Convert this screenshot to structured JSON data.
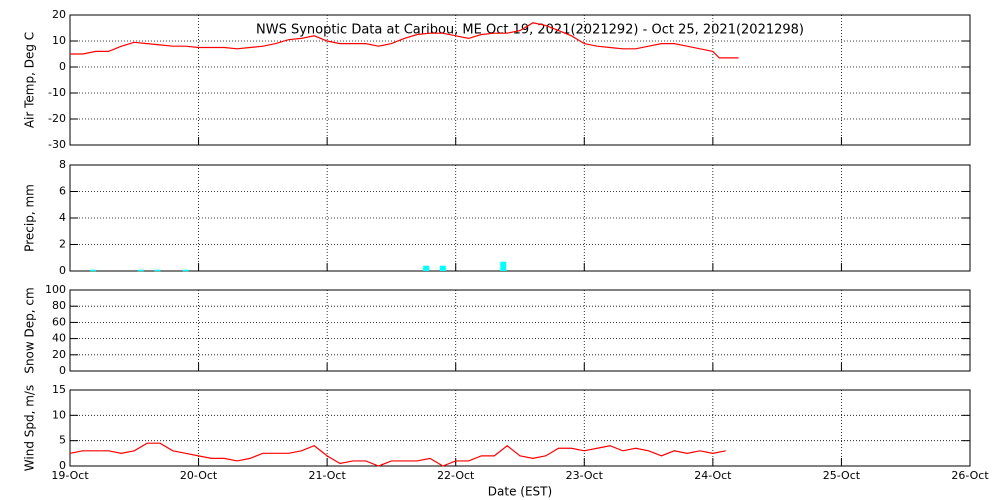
{
  "x_axis": {
    "label": "Date (EST)",
    "xlim": [
      0,
      7
    ],
    "xticks": [
      {
        "value": 0,
        "label": "19-Oct"
      },
      {
        "value": 1,
        "label": "20-Oct"
      },
      {
        "value": 2,
        "label": "21-Oct"
      },
      {
        "value": 3,
        "label": "22-Oct"
      },
      {
        "value": 4,
        "label": "23-Oct"
      },
      {
        "value": 5,
        "label": "24-Oct"
      },
      {
        "value": 6,
        "label": "25-Oct"
      },
      {
        "value": 7,
        "label": "26-Oct"
      }
    ]
  },
  "chart_data": [
    {
      "type": "line",
      "title": "NWS Synoptic Data at Caribou, ME   Oct 19, 2021(2021292) - Oct 25, 2021(2021298)",
      "ylabel": "Air Temp, Deg C",
      "ylim": [
        -30,
        20
      ],
      "yticks": [
        -30,
        -20,
        -10,
        0,
        10,
        20
      ],
      "grid": true,
      "series": [
        {
          "color": "#ff0000",
          "x": [
            0,
            0.1,
            0.2,
            0.3,
            0.4,
            0.5,
            0.6,
            0.7,
            0.8,
            0.9,
            1,
            1.1,
            1.2,
            1.3,
            1.4,
            1.5,
            1.6,
            1.7,
            1.8,
            1.9,
            2,
            2.1,
            2.2,
            2.3,
            2.4,
            2.5,
            2.6,
            2.7,
            2.8,
            2.9,
            3,
            3.1,
            3.2,
            3.3,
            3.4,
            3.5,
            3.6,
            3.7,
            3.8,
            3.9,
            4,
            4.1,
            4.2,
            4.3,
            4.4,
            4.5,
            4.6,
            4.7,
            4.8,
            4.9,
            5,
            5.05,
            5.2
          ],
          "values": [
            5,
            5,
            6,
            6,
            8,
            9.5,
            9,
            8.5,
            8,
            8,
            7.5,
            7.5,
            7.5,
            7,
            7.5,
            8,
            9,
            10.5,
            11,
            12,
            10,
            9,
            9,
            9,
            8,
            9,
            11,
            12.5,
            13,
            13,
            12,
            11,
            12.5,
            13,
            13,
            14,
            17,
            16,
            14,
            12,
            9,
            8,
            7.5,
            7,
            7,
            8,
            9,
            9,
            8,
            7,
            6,
            3.5,
            3.5
          ]
        }
      ]
    },
    {
      "type": "bar",
      "ylabel": "Precip, mm",
      "ylim": [
        0,
        8
      ],
      "yticks": [
        0,
        2,
        4,
        6,
        8
      ],
      "grid": true,
      "series": [
        {
          "color": "#00ffff",
          "x": [
            0.18,
            0.55,
            0.68,
            0.9,
            2.77,
            2.9,
            3.37
          ],
          "values": [
            0.1,
            0.1,
            0.1,
            0.1,
            0.4,
            0.4,
            0.7
          ]
        }
      ]
    },
    {
      "type": "line",
      "ylabel": "Snow Dep, cm",
      "ylim": [
        0,
        100
      ],
      "yticks": [
        0,
        20,
        40,
        60,
        80,
        100
      ],
      "grid": true
    },
    {
      "type": "line",
      "ylabel": "Wind Spd, m/s",
      "ylim": [
        0,
        15
      ],
      "yticks": [
        0,
        5,
        10,
        15
      ],
      "grid": true,
      "series": [
        {
          "color": "#ff0000",
          "x": [
            0,
            0.1,
            0.2,
            0.3,
            0.4,
            0.5,
            0.6,
            0.7,
            0.8,
            0.9,
            1,
            1.1,
            1.2,
            1.3,
            1.4,
            1.5,
            1.6,
            1.7,
            1.8,
            1.9,
            2,
            2.1,
            2.2,
            2.3,
            2.4,
            2.5,
            2.6,
            2.7,
            2.8,
            2.9,
            3,
            3.1,
            3.2,
            3.3,
            3.4,
            3.5,
            3.6,
            3.7,
            3.8,
            3.9,
            4,
            4.1,
            4.2,
            4.3,
            4.4,
            4.5,
            4.6,
            4.7,
            4.8,
            4.9,
            5,
            5.1
          ],
          "values": [
            2.5,
            3,
            3,
            3,
            2.5,
            3,
            4.5,
            4.5,
            3,
            2.5,
            2,
            1.5,
            1.5,
            1,
            1.5,
            2.5,
            2.5,
            2.5,
            3,
            4,
            2,
            0.5,
            1,
            1,
            0,
            1,
            1,
            1,
            1.5,
            0,
            1,
            1,
            2,
            2,
            4,
            2,
            1.5,
            2,
            3.5,
            3.5,
            3,
            3.5,
            4,
            3,
            3.5,
            3,
            2,
            3,
            2.5,
            3,
            2.5,
            3
          ]
        }
      ]
    }
  ]
}
